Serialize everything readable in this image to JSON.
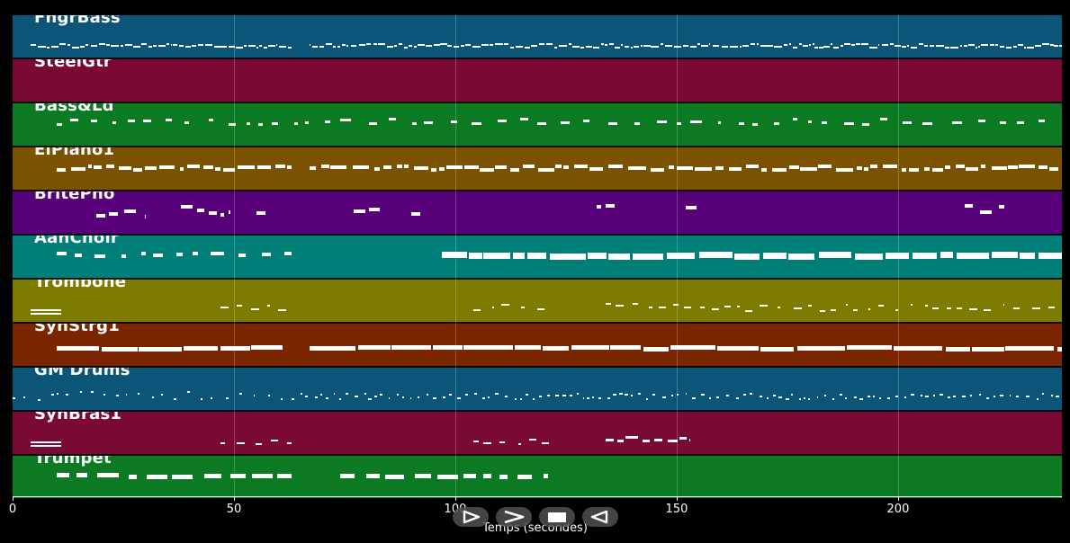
{
  "tracks": [
    {
      "name": "FngrBass",
      "color": "#0b5678",
      "style": "bass"
    },
    {
      "name": "SteelGtr",
      "color": "#7a0a35",
      "style": "guitar"
    },
    {
      "name": "Bass&Ld",
      "color": "#0b7a22",
      "style": "sparse"
    },
    {
      "name": "ElPiano1",
      "color": "#7b5200",
      "style": "piano"
    },
    {
      "name": "BritePno",
      "color": "#57007a",
      "style": "brite"
    },
    {
      "name": "AahChoir",
      "color": "#007e78",
      "style": "choir"
    },
    {
      "name": "Trombone",
      "color": "#7c7b00",
      "style": "trombone"
    },
    {
      "name": "SynStrg1",
      "color": "#7a2500",
      "style": "strings"
    },
    {
      "name": "GM Drums",
      "color": "#0b5678",
      "style": "drums"
    },
    {
      "name": "SynBras1",
      "color": "#7a0a35",
      "style": "brass"
    },
    {
      "name": "Trumpet",
      "color": "#0b7a22",
      "style": "trumpet"
    }
  ],
  "axis": {
    "label": "Temps (secondes)",
    "range": [
      0,
      237
    ],
    "ticks": [
      0,
      50,
      100,
      150,
      200
    ]
  },
  "controls": {
    "play_icon": "play-icon",
    "fast_forward_icon": "fast-forward-icon",
    "stop_icon": "stop-icon",
    "rewind_icon": "rewind-icon"
  }
}
